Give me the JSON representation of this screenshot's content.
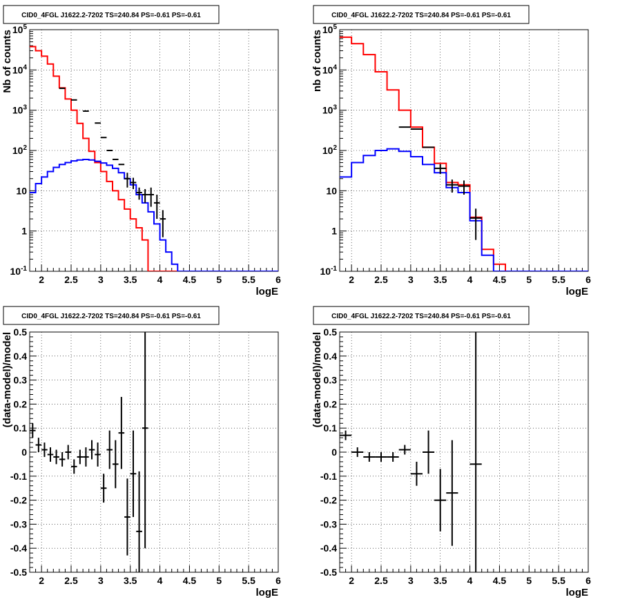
{
  "chart_data": [
    {
      "type": "histogram",
      "title": "CID0_4FGL J1622.2-7202 TS=240.84 PS=-0.61 PS=-0.61",
      "xlabel": "logE",
      "ylabel": "Nb of counts",
      "log_y": true,
      "xlim": [
        1.8,
        6.0
      ],
      "ylim": [
        0.1,
        100000
      ],
      "grid": true,
      "x_ticks": [
        "2",
        "2.5",
        "3",
        "3.5",
        "4",
        "4.5",
        "5",
        "5.5",
        "6"
      ],
      "y_ticks": [
        "10^-1",
        "1",
        "10",
        "10^2",
        "10^3",
        "10^4",
        "10^5"
      ],
      "bin_width": 0.1,
      "series": [
        {
          "color": "#ff0000",
          "style": "step",
          "x_start": 1.8,
          "values": [
            38000,
            30000,
            22000,
            14000,
            7000,
            3600,
            1900,
            1000,
            470,
            200,
            95,
            50,
            30,
            17,
            10,
            6,
            3.5,
            2,
            1.2,
            0.6,
            0.1,
            0.1,
            0.1,
            0.1,
            0.1,
            0.1,
            0.1,
            0.1,
            0.1,
            0.1,
            0.1,
            0.1,
            0.1,
            0.1,
            0.1,
            0.1,
            0.1,
            0.1,
            0.1,
            0.1,
            0.1,
            0.1
          ]
        },
        {
          "color": "#0000ff",
          "style": "step",
          "x_start": 1.8,
          "values": [
            9,
            15,
            22,
            30,
            38,
            45,
            50,
            55,
            58,
            60,
            58,
            54,
            49,
            43,
            36,
            28,
            20,
            14,
            8,
            5,
            3,
            1.5,
            0.6,
            0.3,
            0.15,
            0.1,
            0.1,
            0.1,
            0.1,
            0.1,
            0.1,
            0.1,
            0.1,
            0.1,
            0.1,
            0.1,
            0.1,
            0.1,
            0.1,
            0.1,
            0.1,
            0.1
          ]
        },
        {
          "color": "#000000",
          "style": "points",
          "x": [
            2.35,
            2.55,
            2.75,
            2.95,
            3.05,
            3.15,
            3.25,
            3.35,
            3.45,
            3.55,
            3.65,
            3.75,
            3.85,
            3.95,
            4.05
          ],
          "y": [
            3500,
            1800,
            950,
            480,
            210,
            100,
            60,
            45,
            20,
            16,
            9,
            8,
            8,
            5,
            2
          ],
          "err": [
            0,
            0,
            0,
            0,
            0,
            0,
            0,
            0,
            8,
            5,
            3,
            3,
            4,
            3,
            1.3
          ]
        }
      ]
    },
    {
      "type": "histogram",
      "title": "CID0_4FGL J1622.2-7202 TS=240.84 PS=-0.61 PS=-0.61",
      "xlabel": "logE",
      "ylabel": "nb of counts",
      "log_y": true,
      "xlim": [
        1.8,
        6.0
      ],
      "ylim": [
        0.1,
        100000
      ],
      "grid": true,
      "x_ticks": [
        "2",
        "2.5",
        "3",
        "3.5",
        "4",
        "4.5",
        "5",
        "5.5",
        "6"
      ],
      "y_ticks": [
        "10^-1",
        "1",
        "10",
        "10^2",
        "10^3",
        "10^4",
        "10^5"
      ],
      "bin_width": 0.2,
      "series": [
        {
          "color": "#ff0000",
          "style": "step",
          "x_start": 1.8,
          "values": [
            65000,
            45000,
            24000,
            9000,
            3200,
            1000,
            380,
            120,
            48,
            16,
            14,
            2.2,
            0.35,
            0.15,
            0.1,
            0.1,
            0.1,
            0.1,
            0.1,
            0.1,
            0.1
          ]
        },
        {
          "color": "#0000ff",
          "style": "step",
          "x_start": 1.8,
          "values": [
            22,
            50,
            75,
            100,
            110,
            95,
            70,
            45,
            28,
            12,
            9,
            1.8,
            0.25,
            0.1,
            0.1,
            0.1,
            0.1,
            0.1,
            0.1,
            0.1,
            0.1
          ]
        },
        {
          "color": "#000000",
          "style": "points",
          "x": [
            2.9,
            3.1,
            3.3,
            3.5,
            3.7,
            3.9,
            4.1
          ],
          "y": [
            380,
            340,
            120,
            36,
            14,
            13,
            2.1
          ],
          "err": [
            0,
            0,
            0,
            10,
            5,
            5,
            1.5
          ]
        }
      ]
    },
    {
      "type": "scatter",
      "title": "CID0_4FGL J1622.2-7202 TS=240.84 PS=-0.61 PS=-0.61",
      "xlabel": "logE",
      "ylabel": "(data-model)/model",
      "xlim": [
        1.8,
        6.0
      ],
      "ylim": [
        -0.5,
        0.5
      ],
      "grid": true,
      "x_ticks": [
        "2",
        "2.5",
        "3",
        "3.5",
        "4",
        "4.5",
        "5",
        "5.5",
        "6"
      ],
      "y_ticks": [
        "-0.5",
        "-0.4",
        "-0.3",
        "-0.2",
        "-0.1",
        "0",
        "0.1",
        "0.2",
        "0.3",
        "0.4",
        "0.5"
      ],
      "xerr": 0.05,
      "points": {
        "x": [
          1.85,
          1.95,
          2.05,
          2.15,
          2.25,
          2.35,
          2.45,
          2.55,
          2.65,
          2.75,
          2.85,
          2.95,
          3.05,
          3.15,
          3.25,
          3.35,
          3.45,
          3.55,
          3.65,
          3.75
        ],
        "y": [
          0.09,
          0.03,
          0.01,
          -0.01,
          -0.02,
          -0.03,
          0.0,
          -0.06,
          -0.02,
          -0.02,
          0.01,
          -0.01,
          -0.15,
          0.01,
          -0.05,
          0.08,
          -0.27,
          -0.09,
          -0.33,
          0.1
        ],
        "err": [
          0.03,
          0.03,
          0.03,
          0.03,
          0.03,
          0.03,
          0.03,
          0.03,
          0.03,
          0.04,
          0.04,
          0.05,
          0.06,
          0.08,
          0.1,
          0.15,
          0.16,
          0.18,
          0.25,
          0.5
        ]
      }
    },
    {
      "type": "scatter",
      "title": "CID0_4FGL J1622.2-7202 TS=240.84 PS=-0.61 PS=-0.61",
      "xlabel": "logE",
      "ylabel": "(data-model)/model",
      "xlim": [
        1.8,
        6.0
      ],
      "ylim": [
        -0.5,
        0.5
      ],
      "grid": true,
      "x_ticks": [
        "2",
        "2.5",
        "3",
        "3.5",
        "4",
        "4.5",
        "5",
        "5.5",
        "6"
      ],
      "y_ticks": [
        "-0.5",
        "-0.4",
        "-0.3",
        "-0.2",
        "-0.1",
        "0",
        "0.1",
        "0.2",
        "0.3",
        "0.4",
        "0.5"
      ],
      "xerr": 0.1,
      "points": {
        "x": [
          1.9,
          2.1,
          2.3,
          2.5,
          2.7,
          2.9,
          3.1,
          3.3,
          3.5,
          3.7,
          4.1
        ],
        "y": [
          0.07,
          0.0,
          -0.02,
          -0.02,
          -0.02,
          0.01,
          -0.09,
          0.0,
          -0.2,
          -0.17,
          -0.05
        ],
        "err": [
          0.02,
          0.02,
          0.02,
          0.02,
          0.02,
          0.02,
          0.05,
          0.09,
          0.13,
          0.22,
          0.6
        ]
      }
    }
  ]
}
